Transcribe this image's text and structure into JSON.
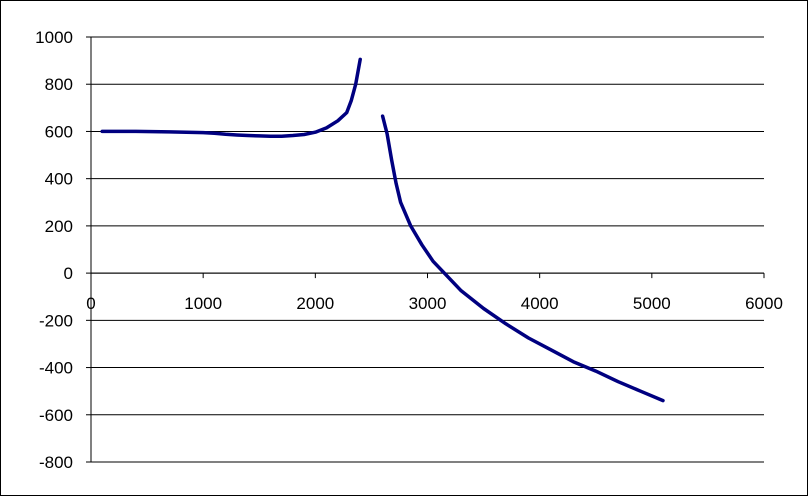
{
  "chart_data": {
    "type": "line",
    "title": "",
    "xlabel": "",
    "ylabel": "",
    "xlim": [
      0,
      6000
    ],
    "ylim": [
      -800,
      1000
    ],
    "x_ticks": [
      0,
      1000,
      2000,
      3000,
      4000,
      5000,
      6000
    ],
    "y_ticks": [
      1000,
      800,
      600,
      400,
      200,
      0,
      -200,
      -400,
      -600,
      -800
    ],
    "x_tick_labels": [
      "0",
      "1000",
      "2000",
      "3000",
      "4000",
      "5000",
      "6000"
    ],
    "y_tick_labels": [
      "1000",
      "800",
      "600",
      "400",
      "200",
      "0",
      "-200",
      "-400",
      "-600",
      "-800"
    ],
    "grid": "horizontal",
    "legend": "none",
    "series_color": "#000080",
    "series": [
      {
        "points": [
          [
            100,
            600
          ],
          [
            400,
            600
          ],
          [
            700,
            598
          ],
          [
            1000,
            595
          ],
          [
            1100,
            592
          ],
          [
            1200,
            588
          ],
          [
            1300,
            585
          ],
          [
            1400,
            583
          ],
          [
            1500,
            581
          ],
          [
            1600,
            580
          ],
          [
            1700,
            580
          ],
          [
            1800,
            583
          ],
          [
            1900,
            587
          ],
          [
            2000,
            597
          ],
          [
            2100,
            615
          ],
          [
            2200,
            645
          ],
          [
            2280,
            680
          ],
          [
            2320,
            730
          ],
          [
            2360,
            800
          ],
          [
            2400,
            905
          ]
        ]
      },
      {
        "points": [
          [
            2600,
            665
          ],
          [
            2640,
            590
          ],
          [
            2680,
            480
          ],
          [
            2720,
            380
          ],
          [
            2760,
            300
          ],
          [
            2850,
            200
          ],
          [
            2950,
            120
          ],
          [
            3050,
            50
          ],
          [
            3150,
            0
          ],
          [
            3300,
            -75
          ],
          [
            3500,
            -150
          ],
          [
            3700,
            -215
          ],
          [
            3900,
            -275
          ],
          [
            4100,
            -325
          ],
          [
            4300,
            -375
          ],
          [
            4500,
            -415
          ],
          [
            4700,
            -460
          ],
          [
            4900,
            -500
          ],
          [
            5100,
            -540
          ]
        ]
      }
    ]
  }
}
